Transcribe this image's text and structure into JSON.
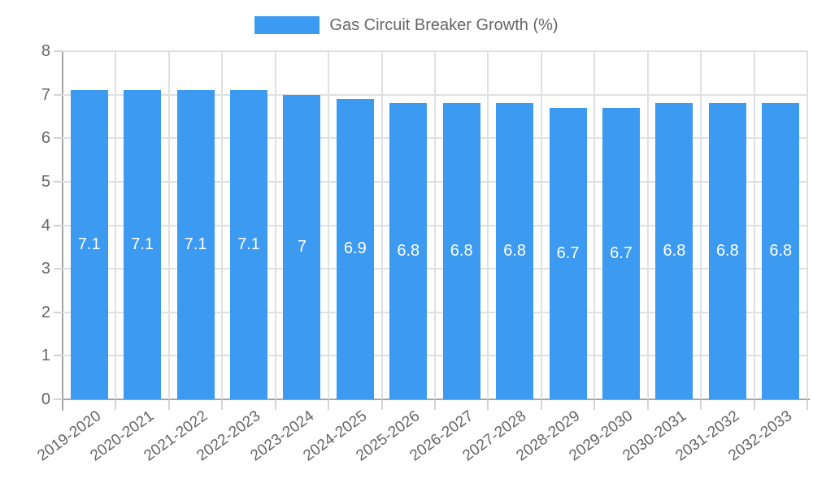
{
  "legend": {
    "label": "Gas Circuit Breaker Growth (%)"
  },
  "chart_data": {
    "type": "bar",
    "title": "Gas Circuit Breaker Growth (%)",
    "categories": [
      "2019-2020",
      "2020-2021",
      "2021-2022",
      "2022-2023",
      "2023-2024",
      "2024-2025",
      "2025-2026",
      "2026-2027",
      "2027-2028",
      "2028-2029",
      "2029-2030",
      "2030-2031",
      "2031-2032",
      "2032-2033"
    ],
    "values": [
      7.1,
      7.1,
      7.1,
      7.1,
      7,
      6.9,
      6.8,
      6.8,
      6.8,
      6.7,
      6.7,
      6.8,
      6.8,
      6.8
    ],
    "xlabel": "",
    "ylabel": "",
    "ylim": [
      0,
      8
    ],
    "yticks": [
      0,
      1,
      2,
      3,
      4,
      5,
      6,
      7,
      8
    ],
    "grid": true,
    "legend_position": "top",
    "value_labels_inside_bars": true,
    "colors": {
      "bar_fill": "#3C9AF0",
      "value_label": "#FFFFFF",
      "axis_line": "#A5A5A5",
      "grid_line": "#E0E0E0",
      "tick_mark": "#D4D4D4",
      "tick_text": "#666666",
      "legend_text": "#666666",
      "background": "#FFFFFF"
    }
  }
}
